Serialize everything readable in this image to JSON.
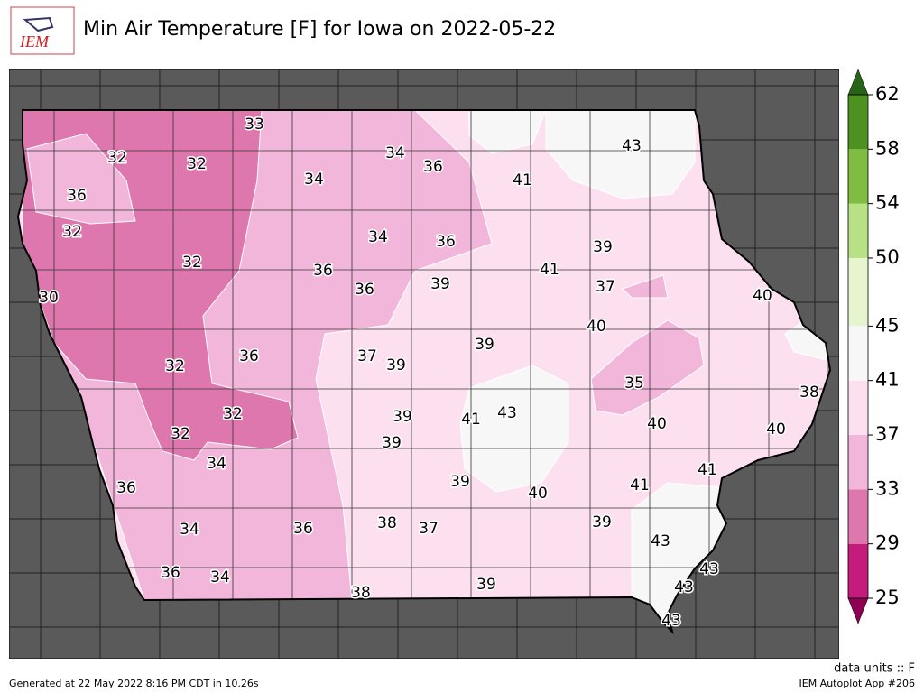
{
  "header": {
    "logo": "IEM",
    "title": "Min Air Temperature [F] for Iowa on 2022-05-22"
  },
  "stations": [
    33,
    34,
    36,
    43,
    32,
    32,
    34,
    41,
    36,
    32,
    34,
    36,
    39,
    32,
    41,
    36,
    39,
    37,
    36,
    30,
    40,
    40,
    39,
    37,
    36,
    39,
    32,
    35,
    38,
    43,
    32,
    39,
    41,
    40,
    40,
    32,
    39,
    34,
    41,
    39,
    36,
    41,
    40,
    39,
    38,
    37,
    34,
    36,
    43,
    36,
    34,
    43,
    39,
    43,
    38,
    43
  ],
  "colorbar": {
    "ticks": [
      25,
      29,
      33,
      37,
      41,
      45,
      50,
      54,
      58,
      62
    ],
    "colors": [
      "#c51b7d",
      "#de77ae",
      "#f1b6da",
      "#fde0ef",
      "#f7f7f7",
      "#e6f5d0",
      "#b8e186",
      "#7fbc41",
      "#4d9221"
    ],
    "under_color": "#8e0152",
    "over_color": "#276419"
  },
  "footer": {
    "units": "data units :: F",
    "generated": "Generated at 22 May 2022 8:16 PM CDT in 10.26s",
    "app": "IEM Autoplot App #206"
  }
}
